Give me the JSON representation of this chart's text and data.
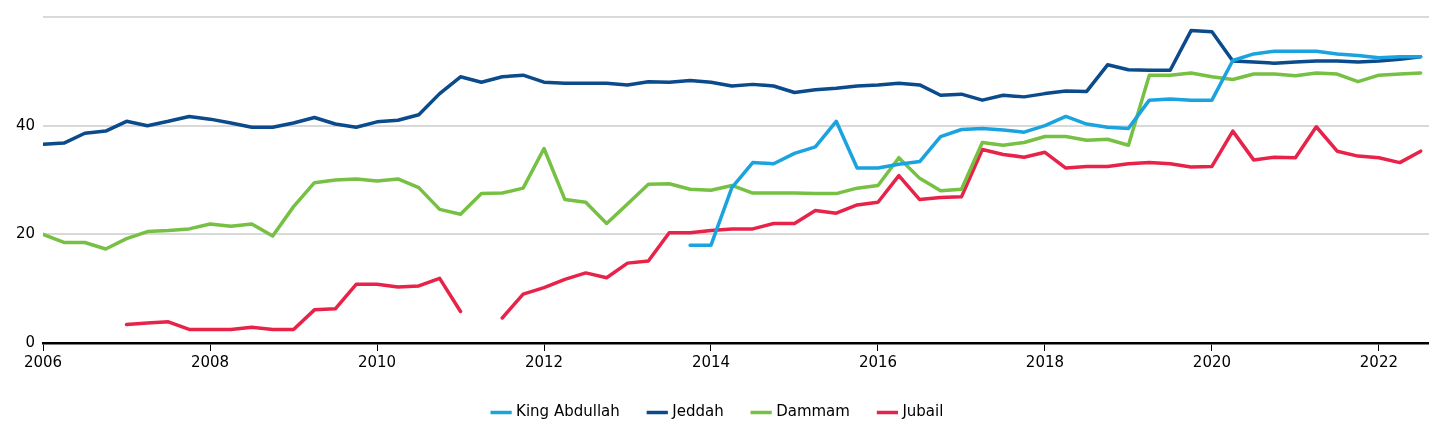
{
  "chart_data": {
    "type": "line",
    "x": [
      2006,
      2006.25,
      2006.5,
      2006.75,
      2007,
      2007.25,
      2007.5,
      2007.75,
      2008,
      2008.25,
      2008.5,
      2008.75,
      2009,
      2009.25,
      2009.5,
      2009.75,
      2010,
      2010.25,
      2010.5,
      2010.75,
      2011,
      2011.25,
      2011.5,
      2011.75,
      2012,
      2012.25,
      2012.5,
      2012.75,
      2013,
      2013.25,
      2013.5,
      2013.75,
      2014,
      2014.25,
      2014.5,
      2014.75,
      2015,
      2015.25,
      2015.5,
      2015.75,
      2016,
      2016.25,
      2016.5,
      2016.75,
      2017,
      2017.25,
      2017.5,
      2017.75,
      2018,
      2018.25,
      2018.5,
      2018.75,
      2019,
      2019.25,
      2019.5,
      2019.75,
      2020,
      2020.25,
      2020.5,
      2020.75,
      2021,
      2021.25,
      2021.5,
      2021.75,
      2022,
      2022.25,
      2022.5
    ],
    "series": [
      {
        "name": "King Abdullah",
        "color": "#1aa3df",
        "values": [
          null,
          null,
          null,
          null,
          null,
          null,
          null,
          null,
          null,
          null,
          null,
          null,
          null,
          null,
          null,
          null,
          null,
          null,
          null,
          null,
          null,
          null,
          null,
          null,
          null,
          null,
          null,
          null,
          null,
          null,
          null,
          18,
          18,
          28.6,
          33.2,
          33,
          34.9,
          36.1,
          40.8,
          32.2,
          32.2,
          32.9,
          33.4,
          38,
          39.3,
          39.5,
          39.2,
          38.8,
          40,
          41.7,
          40.3,
          39.7,
          39.5,
          44.7,
          44.9,
          44.7,
          44.7,
          52,
          53.2,
          53.7,
          53.7,
          53.7,
          53.2,
          52.9,
          52.5,
          52.7,
          52.7
        ]
      },
      {
        "name": "Jeddah",
        "color": "#0b4a8b",
        "values": [
          36.6,
          36.8,
          38.6,
          39,
          40.8,
          40,
          40.8,
          41.7,
          41.2,
          40.5,
          39.7,
          39.7,
          40.5,
          41.5,
          40.3,
          39.7,
          40.7,
          41,
          42,
          45.9,
          49,
          48,
          49,
          49.3,
          48,
          47.8,
          47.8,
          47.8,
          47.5,
          48.1,
          48,
          48.3,
          48,
          47.3,
          47.6,
          47.3,
          46.1,
          46.6,
          46.9,
          47.3,
          47.5,
          47.8,
          47.5,
          45.6,
          45.8,
          44.7,
          45.6,
          45.3,
          45.9,
          46.4,
          46.3,
          51.2,
          50.3,
          50.2,
          50.2,
          57.5,
          57.3,
          51.9,
          51.7,
          51.5,
          51.7,
          51.9,
          51.9,
          51.7,
          51.9,
          52.2,
          52.7
        ]
      },
      {
        "name": "Dammam",
        "color": "#76c043",
        "values": [
          20,
          18.5,
          18.5,
          17.3,
          19.2,
          20.5,
          20.7,
          21,
          21.9,
          21.5,
          21.9,
          19.7,
          25.1,
          29.5,
          30,
          30.2,
          29.8,
          30.2,
          28.6,
          24.6,
          23.7,
          27.5,
          27.6,
          28.5,
          35.8,
          26.4,
          25.9,
          22,
          25.6,
          29.2,
          29.3,
          28.3,
          28.1,
          29,
          27.6,
          27.6,
          27.6,
          27.5,
          27.5,
          28.5,
          29,
          34.1,
          30.3,
          28,
          28.3,
          36.9,
          36.4,
          36.9,
          38,
          38,
          37.3,
          37.5,
          36.4,
          49.3,
          49.3,
          49.7,
          49,
          48.5,
          49.5,
          49.5,
          49.2,
          49.7,
          49.5,
          48.1,
          49.3,
          49.5,
          49.7
        ]
      },
      {
        "name": "Jubail",
        "color": "#e8234a",
        "values": [
          null,
          null,
          null,
          null,
          3.4,
          3.7,
          3.9,
          2.5,
          2.5,
          2.5,
          2.9,
          2.5,
          2.5,
          6.1,
          6.3,
          10.8,
          10.8,
          10.3,
          10.5,
          11.9,
          5.8,
          null,
          4.6,
          9,
          10.2,
          11.7,
          12.9,
          12,
          14.7,
          15.1,
          20.3,
          20.3,
          20.7,
          21,
          21,
          22,
          22,
          24.4,
          23.9,
          25.4,
          25.9,
          30.8,
          26.4,
          26.8,
          26.9,
          35.6,
          34.7,
          34.2,
          35.1,
          32.2,
          32.5,
          32.5,
          33,
          33.2,
          33,
          32.4,
          32.5,
          39,
          33.7,
          34.2,
          34.1,
          39.8,
          35.3,
          34.4,
          34.1,
          33.2,
          35.3
        ]
      }
    ],
    "xlim": [
      2006,
      2022.6
    ],
    "xticks": [
      2006,
      2008,
      2010,
      2012,
      2014,
      2016,
      2018,
      2020,
      2022
    ],
    "ylim": [
      0,
      60
    ],
    "yticks": [
      0,
      20,
      40,
      {
        "value": 60,
        "label": null
      }
    ],
    "grid": "y",
    "legend": "bottom",
    "marker": "none",
    "line_style": "solid"
  }
}
